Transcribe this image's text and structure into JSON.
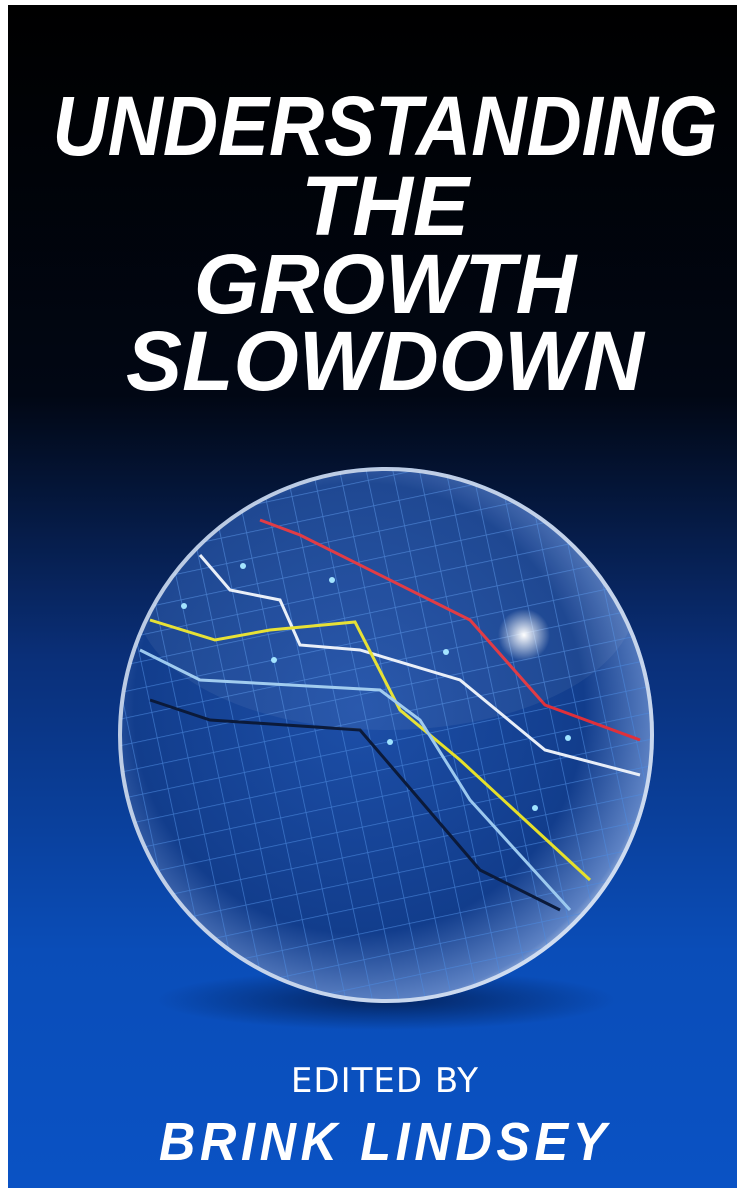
{
  "cover": {
    "title_lines": [
      "UNDERSTANDING",
      "THE",
      "GROWTH",
      "SLOWDOWN"
    ],
    "edited_by": "EDITED BY",
    "author": "BRINK LINDSEY"
  }
}
